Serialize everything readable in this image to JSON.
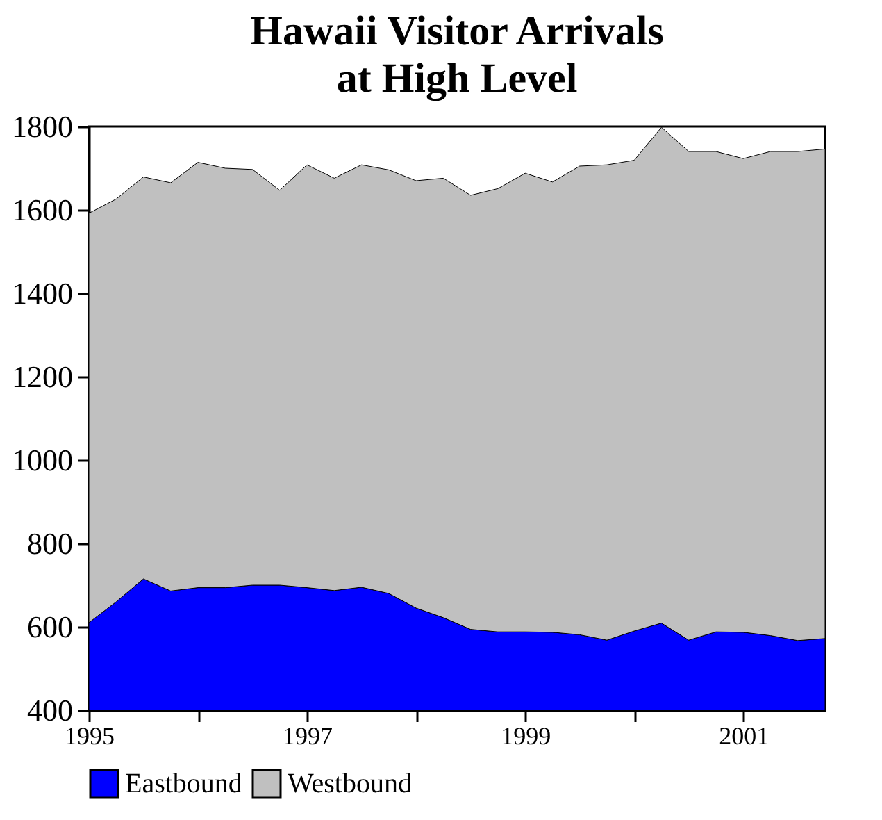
{
  "chart_data": {
    "type": "area",
    "title": "Hawaii Visitor Arrivals\nat High Level",
    "stacked": true,
    "legend": "bottom",
    "x": [
      1995,
      1995.25,
      1995.5,
      1995.75,
      1996,
      1996.25,
      1996.5,
      1996.75,
      1997,
      1997.25,
      1997.5,
      1997.75,
      1998,
      1998.25,
      1998.5,
      1998.75,
      1999,
      1999.25,
      1999.5,
      1999.75,
      2000,
      2000.25,
      2000.5,
      2000.75,
      2001,
      2001.25,
      2001.5,
      2001.75
    ],
    "xlim": [
      1995,
      2001.75
    ],
    "xticks": [
      1995,
      {
        "value": 1996,
        "label": null
      },
      1997,
      {
        "value": 1998,
        "label": null
      },
      1999,
      {
        "value": 2000,
        "label": null
      },
      2001
    ],
    "ylim": [
      400,
      1800
    ],
    "yticks": [
      400,
      600,
      800,
      1000,
      1200,
      1400,
      1600,
      1800
    ],
    "grid": false,
    "series": [
      {
        "name": "Eastbound",
        "color": "#0000ff",
        "values": [
          610,
          660,
          715,
          686,
          694,
          694,
          700,
          700,
          694,
          687,
          695,
          680,
          645,
          622,
          594,
          588,
          588,
          587,
          581,
          568,
          590,
          609,
          568,
          588,
          587,
          579,
          567,
          572
        ]
      },
      {
        "name": "Westbound",
        "color": "#c0c0c0",
        "values": [
          982,
          966,
          964,
          979,
          1020,
          1006,
          997,
          947,
          1014,
          989,
          1013,
          1016,
          1025,
          1054,
          1041,
          1063,
          1100,
          1080,
          1124,
          1140,
          1129,
          1189,
          1172,
          1152,
          1136,
          1161,
          1173,
          1174
        ]
      }
    ]
  }
}
